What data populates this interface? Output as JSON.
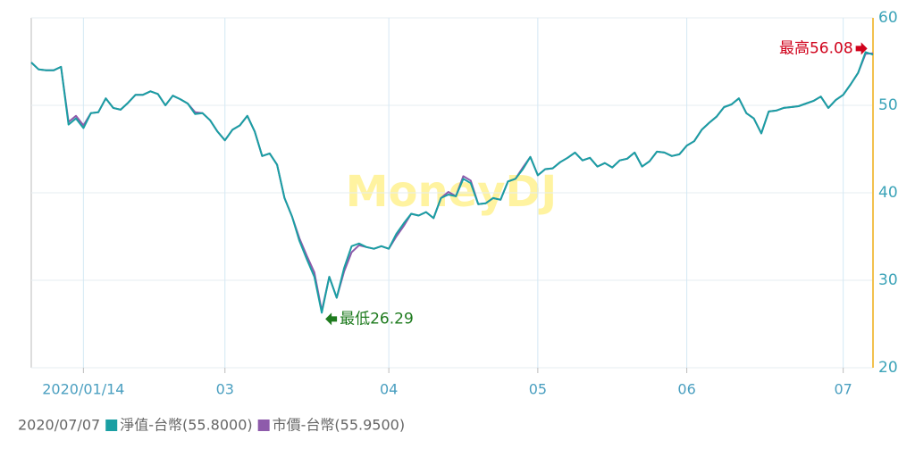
{
  "chart_data": {
    "type": "line",
    "watermark": "MoneyDJ",
    "categories": [
      null,
      null,
      null,
      null,
      null,
      null,
      null,
      "2020/01/14",
      null,
      null,
      null,
      null,
      null,
      null,
      null,
      null,
      null,
      null,
      null,
      null,
      null,
      null,
      null,
      null,
      null,
      null,
      "03",
      null,
      null,
      null,
      null,
      null,
      null,
      null,
      null,
      null,
      null,
      null,
      null,
      null,
      null,
      null,
      null,
      null,
      null,
      null,
      null,
      null,
      "04",
      null,
      null,
      null,
      null,
      null,
      null,
      null,
      null,
      null,
      null,
      null,
      null,
      null,
      null,
      null,
      null,
      null,
      null,
      null,
      "05",
      null,
      null,
      null,
      null,
      null,
      null,
      null,
      null,
      null,
      null,
      null,
      null,
      null,
      null,
      null,
      null,
      null,
      null,
      null,
      "06",
      null,
      null,
      null,
      null,
      null,
      null,
      null,
      null,
      null,
      null,
      null,
      null,
      null,
      null,
      null,
      null,
      null,
      null,
      null,
      null,
      "07",
      null,
      null,
      null,
      null
    ],
    "series": [
      {
        "name": "淨值-台幣(55.8000)",
        "color": "#1a9fa3",
        "values": [
          54.9,
          54.1,
          54.0,
          54.0,
          54.4,
          47.8,
          48.5,
          47.4,
          49.1,
          49.2,
          50.8,
          49.7,
          49.5,
          50.3,
          51.2,
          51.2,
          51.6,
          51.3,
          50.0,
          51.1,
          50.7,
          50.2,
          49.0,
          49.1,
          48.3,
          47.0,
          46.0,
          47.2,
          47.7,
          48.8,
          47.0,
          44.2,
          44.5,
          43.2,
          39.4,
          37.3,
          34.5,
          32.4,
          30.4,
          26.29,
          30.4,
          28.0,
          31.4,
          33.9,
          34.2,
          33.8,
          33.6,
          33.9,
          33.6,
          35.3,
          36.5,
          37.6,
          37.4,
          37.8,
          37.1,
          39.4,
          39.8,
          39.6,
          41.6,
          41.1,
          38.7,
          38.8,
          39.4,
          39.2,
          41.3,
          41.6,
          42.7,
          44.1,
          42.0,
          42.7,
          42.8,
          43.5,
          44.0,
          44.6,
          43.7,
          44.0,
          43.0,
          43.4,
          42.9,
          43.7,
          43.9,
          44.6,
          43.0,
          43.6,
          44.7,
          44.6,
          44.2,
          44.4,
          45.4,
          45.9,
          47.2,
          48.0,
          48.7,
          49.8,
          50.1,
          50.8,
          49.1,
          48.5,
          46.8,
          49.3,
          49.4,
          49.7,
          49.8,
          49.9,
          50.2,
          50.5,
          51.0,
          49.7,
          50.6,
          51.2,
          52.4,
          53.7,
          56.08,
          55.8
        ]
      },
      {
        "name": "市價-台幣(55.9500)",
        "color": "#8e5bab",
        "values": [
          54.9,
          54.1,
          54.0,
          54.0,
          54.4,
          48.1,
          48.8,
          47.7,
          49.1,
          49.2,
          50.8,
          49.7,
          49.5,
          50.3,
          51.2,
          51.2,
          51.6,
          51.3,
          50.0,
          51.1,
          50.7,
          50.2,
          49.2,
          49.1,
          48.3,
          47.0,
          46.0,
          47.2,
          47.7,
          48.8,
          47.0,
          44.2,
          44.5,
          43.2,
          39.4,
          37.3,
          34.8,
          32.8,
          30.9,
          26.5,
          30.4,
          28.0,
          31.0,
          33.2,
          34.0,
          33.8,
          33.6,
          33.9,
          33.6,
          35.0,
          36.2,
          37.6,
          37.4,
          37.8,
          37.1,
          39.4,
          40.1,
          39.6,
          41.9,
          41.4,
          38.7,
          38.8,
          39.4,
          39.2,
          41.3,
          41.6,
          42.9,
          44.1,
          42.0,
          42.7,
          42.8,
          43.5,
          44.0,
          44.6,
          43.7,
          44.0,
          43.0,
          43.4,
          42.9,
          43.7,
          43.9,
          44.6,
          43.0,
          43.6,
          44.7,
          44.6,
          44.2,
          44.4,
          45.4,
          45.9,
          47.2,
          48.0,
          48.7,
          49.8,
          50.1,
          50.8,
          49.1,
          48.5,
          46.8,
          49.3,
          49.4,
          49.7,
          49.8,
          49.9,
          50.2,
          50.5,
          51.0,
          49.7,
          50.6,
          51.2,
          52.4,
          53.7,
          55.9,
          55.95
        ]
      }
    ],
    "ylim": [
      20,
      60
    ],
    "yticks": [
      20,
      30,
      40,
      50,
      60
    ],
    "yaxis_side": "right",
    "grid": true,
    "legend_date": "2020/07/07",
    "annotations": {
      "max": "最高56.08",
      "min": "最低26.29"
    }
  }
}
